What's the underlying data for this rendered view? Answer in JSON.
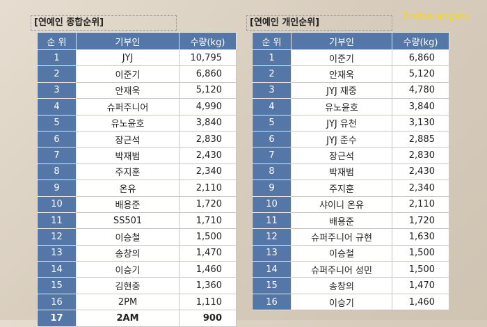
{
  "watermark": "3rebelangels",
  "left": {
    "title": "[연예인 종합순위]",
    "headers": [
      "순 위",
      "기부인",
      "수량(kg)"
    ],
    "rows": [
      {
        "rank": "1",
        "name": "JYJ",
        "amount": "10,795"
      },
      {
        "rank": "2",
        "name": "이준기",
        "amount": "6,860"
      },
      {
        "rank": "3",
        "name": "안재욱",
        "amount": "5,120"
      },
      {
        "rank": "4",
        "name": "슈퍼주니어",
        "amount": "4,990"
      },
      {
        "rank": "5",
        "name": "유노윤호",
        "amount": "3,840"
      },
      {
        "rank": "6",
        "name": "장근석",
        "amount": "2,830"
      },
      {
        "rank": "7",
        "name": "박재범",
        "amount": "2,430"
      },
      {
        "rank": "8",
        "name": "주지훈",
        "amount": "2,340"
      },
      {
        "rank": "9",
        "name": "온유",
        "amount": "2,110"
      },
      {
        "rank": "10",
        "name": "배용준",
        "amount": "1,720"
      },
      {
        "rank": "11",
        "name": "SS501",
        "amount": "1,710"
      },
      {
        "rank": "12",
        "name": "이승철",
        "amount": "1,500"
      },
      {
        "rank": "13",
        "name": "송창의",
        "amount": "1,470"
      },
      {
        "rank": "14",
        "name": "이승기",
        "amount": "1,460"
      },
      {
        "rank": "15",
        "name": "김현중",
        "amount": "1,360"
      },
      {
        "rank": "16",
        "name": "2PM",
        "amount": "1,110"
      },
      {
        "rank": "17",
        "name": "2AM",
        "amount": "900"
      }
    ]
  },
  "right": {
    "title": "[연예인 개인순위]",
    "headers": [
      "순 위",
      "기부인",
      "수량(kg)"
    ],
    "rows": [
      {
        "rank": "1",
        "name": "이준기",
        "amount": "6,860"
      },
      {
        "rank": "2",
        "name": "안재욱",
        "amount": "5,120"
      },
      {
        "rank": "3",
        "name": "JYJ 재중",
        "amount": "4,780"
      },
      {
        "rank": "4",
        "name": "유노윤호",
        "amount": "3,840"
      },
      {
        "rank": "5",
        "name": "JYJ 유천",
        "amount": "3,130"
      },
      {
        "rank": "6",
        "name": "JYJ 준수",
        "amount": "2,885"
      },
      {
        "rank": "7",
        "name": "장근석",
        "amount": "2,830"
      },
      {
        "rank": "8",
        "name": "박재범",
        "amount": "2,430"
      },
      {
        "rank": "9",
        "name": "주지훈",
        "amount": "2,340"
      },
      {
        "rank": "10",
        "name": "샤이니 온유",
        "amount": "2,110"
      },
      {
        "rank": "11",
        "name": "배용준",
        "amount": "1,720"
      },
      {
        "rank": "12",
        "name": "슈퍼주니어 규현",
        "amount": "1,630"
      },
      {
        "rank": "13",
        "name": "이승철",
        "amount": "1,500"
      },
      {
        "rank": "14",
        "name": "슈퍼주니어 성민",
        "amount": "1,500"
      },
      {
        "rank": "15",
        "name": "송창의",
        "amount": "1,470"
      },
      {
        "rank": "16",
        "name": "이승기",
        "amount": "1,460"
      }
    ]
  }
}
